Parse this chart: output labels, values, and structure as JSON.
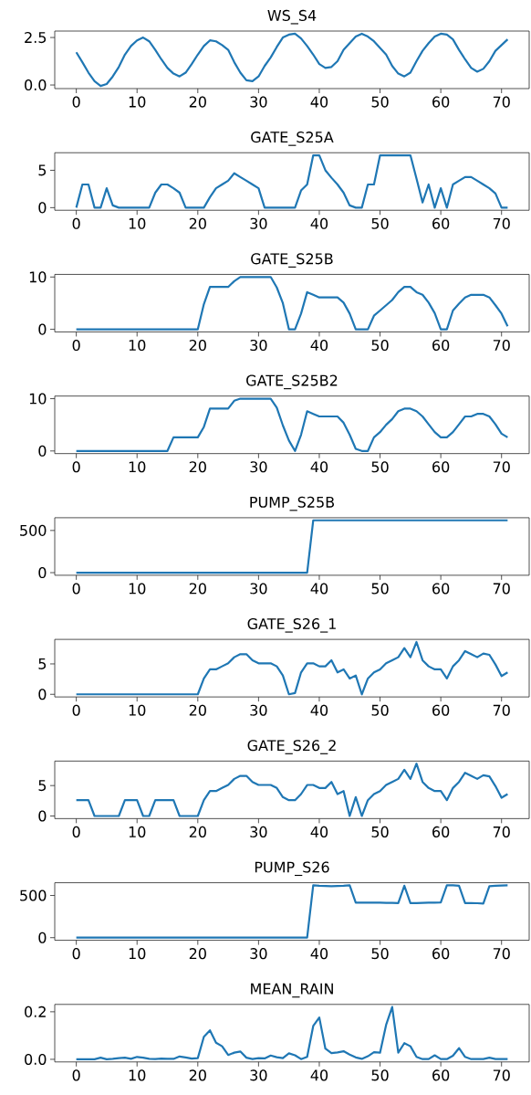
{
  "chart_data": [
    {
      "type": "line",
      "title": "WS_S4",
      "color": "#1f77b4",
      "xlim": [
        -3.55,
        74.55
      ],
      "ylim": [
        -0.19,
        2.84
      ],
      "xticks": [
        0,
        10,
        20,
        30,
        40,
        50,
        60,
        70
      ],
      "yticks": [
        {
          "value": 0,
          "label": "0.0"
        },
        2.5
      ],
      "x": [
        0,
        1,
        2,
        3,
        4,
        5,
        6,
        7,
        8,
        9,
        10,
        11,
        12,
        13,
        14,
        15,
        16,
        17,
        18,
        19,
        20,
        21,
        22,
        23,
        24,
        25,
        26,
        27,
        28,
        29,
        30,
        31,
        32,
        33,
        34,
        35,
        36,
        37,
        38,
        39,
        40,
        41,
        42,
        43,
        44,
        45,
        46,
        47,
        48,
        49,
        50,
        51,
        52,
        53,
        54,
        55,
        56,
        57,
        58,
        59,
        60,
        61,
        62,
        63,
        64,
        65,
        66,
        67,
        68,
        69,
        70,
        71
      ],
      "values": [
        1.72,
        1.2,
        0.65,
        0.2,
        -0.05,
        0.05,
        0.45,
        0.95,
        1.6,
        2.05,
        2.35,
        2.5,
        2.3,
        1.85,
        1.35,
        0.9,
        0.6,
        0.45,
        0.65,
        1.1,
        1.6,
        2.05,
        2.35,
        2.3,
        2.1,
        1.85,
        1.2,
        0.65,
        0.25,
        0.2,
        0.45,
        1.0,
        1.45,
        2.0,
        2.5,
        2.65,
        2.7,
        2.45,
        2.05,
        1.6,
        1.1,
        0.9,
        0.95,
        1.25,
        1.85,
        2.2,
        2.55,
        2.7,
        2.55,
        2.3,
        1.95,
        1.6,
        1.0,
        0.6,
        0.45,
        0.65,
        1.25,
        1.8,
        2.2,
        2.55,
        2.7,
        2.65,
        2.4,
        1.85,
        1.35,
        0.9,
        0.7,
        0.85,
        1.25,
        1.8,
        2.1,
        2.4
      ]
    },
    {
      "type": "line",
      "title": "GATE_S25A",
      "color": "#1f77b4",
      "xlim": [
        -3.55,
        74.55
      ],
      "ylim": [
        -0.35,
        7.35
      ],
      "xticks": [
        0,
        10,
        20,
        30,
        40,
        50,
        60,
        70
      ],
      "yticks": [
        0,
        5
      ],
      "x": [
        0,
        1,
        2,
        3,
        4,
        5,
        6,
        7,
        8,
        9,
        10,
        11,
        12,
        13,
        14,
        15,
        16,
        17,
        18,
        19,
        20,
        21,
        22,
        23,
        24,
        25,
        26,
        27,
        28,
        29,
        30,
        31,
        32,
        33,
        34,
        35,
        36,
        37,
        38,
        39,
        40,
        41,
        42,
        43,
        44,
        45,
        46,
        47,
        48,
        49,
        50,
        51,
        52,
        53,
        54,
        55,
        56,
        57,
        58,
        59,
        60,
        61,
        62,
        63,
        64,
        65,
        66,
        67,
        68,
        69,
        70,
        71
      ],
      "values": [
        0,
        3.1,
        3.1,
        0,
        0,
        2.6,
        0.3,
        0,
        0,
        0,
        0,
        0,
        0,
        2.0,
        3.1,
        3.1,
        2.6,
        2.0,
        0,
        0,
        0,
        0,
        1.4,
        2.6,
        3.1,
        3.6,
        4.6,
        4.1,
        3.6,
        3.1,
        2.6,
        0,
        0,
        0,
        0,
        0,
        0,
        2.3,
        3.1,
        7,
        7,
        5.0,
        4.0,
        3.1,
        2.0,
        0.3,
        0,
        0,
        3.1,
        3.1,
        7,
        7,
        7,
        7,
        7,
        7,
        3.9,
        0.7,
        3.1,
        0,
        2.6,
        0,
        3.1,
        3.6,
        4.1,
        4.1,
        3.6,
        3.1,
        2.6,
        1.9,
        0,
        0
      ]
    },
    {
      "type": "line",
      "title": "GATE_S25B",
      "color": "#1f77b4",
      "xlim": [
        -3.55,
        74.55
      ],
      "ylim": [
        -0.5,
        10.5
      ],
      "xticks": [
        0,
        10,
        20,
        30,
        40,
        50,
        60,
        70
      ],
      "yticks": [
        0,
        10
      ],
      "x": [
        0,
        1,
        2,
        3,
        4,
        5,
        6,
        7,
        8,
        9,
        10,
        11,
        12,
        13,
        14,
        15,
        16,
        17,
        18,
        19,
        20,
        21,
        22,
        23,
        24,
        25,
        26,
        27,
        28,
        29,
        30,
        31,
        32,
        33,
        34,
        35,
        36,
        37,
        38,
        39,
        40,
        41,
        42,
        43,
        44,
        45,
        46,
        47,
        48,
        49,
        50,
        51,
        52,
        53,
        54,
        55,
        56,
        57,
        58,
        59,
        60,
        61,
        62,
        63,
        64,
        65,
        66,
        67,
        68,
        69,
        70,
        71
      ],
      "values": [
        0,
        0,
        0,
        0,
        0,
        0,
        0,
        0,
        0,
        0,
        0,
        0,
        0,
        0,
        0,
        0,
        0,
        0,
        0,
        0,
        0,
        4.8,
        8.1,
        8.1,
        8.1,
        8.1,
        9.2,
        10,
        10,
        10,
        10,
        10,
        10,
        8,
        5,
        0,
        0,
        3,
        7.1,
        6.6,
        6.1,
        6.1,
        6.1,
        6.1,
        5.1,
        3.0,
        0,
        0,
        0,
        2.6,
        3.6,
        4.6,
        5.6,
        7.1,
        8.1,
        8.1,
        7.1,
        6.6,
        5.1,
        3.1,
        0,
        0,
        3.6,
        4.9,
        6.1,
        6.6,
        6.6,
        6.6,
        6.1,
        4.6,
        3.0,
        0.6
      ]
    },
    {
      "type": "line",
      "title": "GATE_S25B2",
      "color": "#1f77b4",
      "xlim": [
        -3.55,
        74.55
      ],
      "ylim": [
        -0.5,
        10.5
      ],
      "xticks": [
        0,
        10,
        20,
        30,
        40,
        50,
        60,
        70
      ],
      "yticks": [
        0,
        10
      ],
      "x": [
        0,
        1,
        2,
        3,
        4,
        5,
        6,
        7,
        8,
        9,
        10,
        11,
        12,
        13,
        14,
        15,
        16,
        17,
        18,
        19,
        20,
        21,
        22,
        23,
        24,
        25,
        26,
        27,
        28,
        29,
        30,
        31,
        32,
        33,
        34,
        35,
        36,
        37,
        38,
        39,
        40,
        41,
        42,
        43,
        44,
        45,
        46,
        47,
        48,
        49,
        50,
        51,
        52,
        53,
        54,
        55,
        56,
        57,
        58,
        59,
        60,
        61,
        62,
        63,
        64,
        65,
        66,
        67,
        68,
        69,
        70,
        71
      ],
      "values": [
        0,
        0,
        0,
        0,
        0,
        0,
        0,
        0,
        0,
        0,
        0,
        0,
        0,
        0,
        0,
        0,
        2.6,
        2.6,
        2.6,
        2.6,
        2.6,
        4.6,
        8.1,
        8.1,
        8.1,
        8.1,
        9.6,
        10,
        10,
        10,
        10,
        10,
        10,
        8.3,
        4.9,
        2.0,
        0,
        3.1,
        7.6,
        7.1,
        6.6,
        6.6,
        6.6,
        6.6,
        5.4,
        3.1,
        0.4,
        0,
        0,
        2.6,
        3.6,
        5.0,
        6.1,
        7.6,
        8.1,
        8.1,
        7.6,
        6.6,
        5.1,
        3.6,
        2.6,
        2.6,
        3.6,
        5.1,
        6.6,
        6.6,
        7.1,
        7.1,
        6.6,
        5.1,
        3.3,
        2.6
      ]
    },
    {
      "type": "line",
      "title": "PUMP_S25B",
      "color": "#1f77b4",
      "xlim": [
        -3.55,
        74.55
      ],
      "ylim": [
        -31,
        651
      ],
      "xticks": [
        0,
        10,
        20,
        30,
        40,
        50,
        60,
        70
      ],
      "yticks": [
        0,
        500
      ],
      "x": [
        0,
        1,
        2,
        3,
        4,
        5,
        6,
        7,
        8,
        9,
        10,
        11,
        12,
        13,
        14,
        15,
        16,
        17,
        18,
        19,
        20,
        21,
        22,
        23,
        24,
        25,
        26,
        27,
        28,
        29,
        30,
        31,
        32,
        33,
        34,
        35,
        36,
        37,
        38,
        39,
        40,
        41,
        42,
        43,
        44,
        45,
        46,
        47,
        48,
        49,
        50,
        51,
        52,
        53,
        54,
        55,
        56,
        57,
        58,
        59,
        60,
        61,
        62,
        63,
        64,
        65,
        66,
        67,
        68,
        69,
        70,
        71
      ],
      "values": [
        0,
        0,
        0,
        0,
        0,
        0,
        0,
        0,
        0,
        0,
        0,
        0,
        0,
        0,
        0,
        0,
        0,
        0,
        0,
        0,
        0,
        0,
        0,
        0,
        0,
        0,
        0,
        0,
        0,
        0,
        0,
        0,
        0,
        0,
        0,
        0,
        0,
        0,
        0,
        620,
        620,
        620,
        620,
        620,
        620,
        620,
        620,
        620,
        620,
        620,
        620,
        620,
        620,
        620,
        620,
        620,
        620,
        620,
        620,
        620,
        620,
        620,
        620,
        620,
        620,
        620,
        620,
        620,
        620,
        620,
        620,
        620
      ]
    },
    {
      "type": "line",
      "title": "GATE_S26_1",
      "color": "#1f77b4",
      "xlim": [
        -3.55,
        74.55
      ],
      "ylim": [
        -0.43,
        9.03
      ],
      "xticks": [
        0,
        10,
        20,
        30,
        40,
        50,
        60,
        70
      ],
      "yticks": [
        0,
        5
      ],
      "x": [
        0,
        1,
        2,
        3,
        4,
        5,
        6,
        7,
        8,
        9,
        10,
        11,
        12,
        13,
        14,
        15,
        16,
        17,
        18,
        19,
        20,
        21,
        22,
        23,
        24,
        25,
        26,
        27,
        28,
        29,
        30,
        31,
        32,
        33,
        34,
        35,
        36,
        37,
        38,
        39,
        40,
        41,
        42,
        43,
        44,
        45,
        46,
        47,
        48,
        49,
        50,
        51,
        52,
        53,
        54,
        55,
        56,
        57,
        58,
        59,
        60,
        61,
        62,
        63,
        64,
        65,
        66,
        67,
        68,
        69,
        70,
        71
      ],
      "values": [
        0,
        0,
        0,
        0,
        0,
        0,
        0,
        0,
        0,
        0,
        0,
        0,
        0,
        0,
        0,
        0,
        0,
        0,
        0,
        0,
        0,
        2.6,
        4.1,
        4.1,
        4.6,
        5.1,
        6.1,
        6.6,
        6.6,
        5.6,
        5.1,
        5.1,
        5.1,
        4.6,
        3.1,
        0,
        0.2,
        3.6,
        5.1,
        5.1,
        4.6,
        4.6,
        5.6,
        3.6,
        4.1,
        2.6,
        3.1,
        0,
        2.6,
        3.6,
        4.1,
        5.1,
        5.6,
        6.1,
        7.6,
        6.1,
        8.6,
        5.6,
        4.6,
        4.1,
        4.1,
        2.6,
        4.6,
        5.6,
        7.1,
        6.6,
        6.1,
        6.7,
        6.5,
        4.9,
        3.0,
        3.6
      ]
    },
    {
      "type": "line",
      "title": "GATE_S26_2",
      "color": "#1f77b4",
      "xlim": [
        -3.55,
        74.55
      ],
      "ylim": [
        -0.43,
        9.03
      ],
      "xticks": [
        0,
        10,
        20,
        30,
        40,
        50,
        60,
        70
      ],
      "yticks": [
        0,
        5
      ],
      "x": [
        0,
        1,
        2,
        3,
        4,
        5,
        6,
        7,
        8,
        9,
        10,
        11,
        12,
        13,
        14,
        15,
        16,
        17,
        18,
        19,
        20,
        21,
        22,
        23,
        24,
        25,
        26,
        27,
        28,
        29,
        30,
        31,
        32,
        33,
        34,
        35,
        36,
        37,
        38,
        39,
        40,
        41,
        42,
        43,
        44,
        45,
        46,
        47,
        48,
        49,
        50,
        51,
        52,
        53,
        54,
        55,
        56,
        57,
        58,
        59,
        60,
        61,
        62,
        63,
        64,
        65,
        66,
        67,
        68,
        69,
        70,
        71
      ],
      "values": [
        2.6,
        2.6,
        2.6,
        0,
        0,
        0,
        0,
        0,
        2.6,
        2.6,
        2.6,
        0,
        0,
        2.6,
        2.6,
        2.6,
        2.6,
        0,
        0,
        0,
        0,
        2.6,
        4.1,
        4.1,
        4.6,
        5.1,
        6.1,
        6.6,
        6.6,
        5.6,
        5.1,
        5.1,
        5.1,
        4.6,
        3.1,
        2.6,
        2.6,
        3.6,
        5.1,
        5.1,
        4.6,
        4.6,
        5.6,
        3.6,
        4.1,
        0,
        3.1,
        0,
        2.6,
        3.6,
        4.1,
        5.1,
        5.6,
        6.1,
        7.6,
        6.1,
        8.6,
        5.6,
        4.6,
        4.1,
        4.1,
        2.6,
        4.6,
        5.6,
        7.1,
        6.6,
        6.1,
        6.7,
        6.5,
        4.9,
        3.0,
        3.6
      ]
    },
    {
      "type": "line",
      "title": "PUMP_S26",
      "color": "#1f77b4",
      "xlim": [
        -3.55,
        74.55
      ],
      "ylim": [
        -31,
        651
      ],
      "xticks": [
        0,
        10,
        20,
        30,
        40,
        50,
        60,
        70
      ],
      "yticks": [
        0,
        500
      ],
      "x": [
        0,
        1,
        2,
        3,
        4,
        5,
        6,
        7,
        8,
        9,
        10,
        11,
        12,
        13,
        14,
        15,
        16,
        17,
        18,
        19,
        20,
        21,
        22,
        23,
        24,
        25,
        26,
        27,
        28,
        29,
        30,
        31,
        32,
        33,
        34,
        35,
        36,
        37,
        38,
        39,
        40,
        41,
        42,
        43,
        44,
        45,
        46,
        47,
        48,
        49,
        50,
        51,
        52,
        53,
        54,
        55,
        56,
        57,
        58,
        59,
        60,
        61,
        62,
        63,
        64,
        65,
        66,
        67,
        68,
        69,
        70,
        71
      ],
      "values": [
        0,
        0,
        0,
        0,
        0,
        0,
        0,
        0,
        0,
        0,
        0,
        0,
        0,
        0,
        0,
        0,
        0,
        0,
        0,
        0,
        0,
        0,
        0,
        0,
        0,
        0,
        0,
        0,
        0,
        0,
        0,
        0,
        0,
        0,
        0,
        0,
        0,
        0,
        0,
        620,
        615,
        612,
        610,
        612,
        615,
        620,
        415,
        415,
        415,
        415,
        415,
        413,
        412,
        410,
        615,
        410,
        410,
        413,
        415,
        415,
        417,
        620,
        620,
        615,
        410,
        410,
        408,
        405,
        610,
        615,
        618,
        620
      ]
    },
    {
      "type": "line",
      "title": "MEAN_RAIN",
      "color": "#1f77b4",
      "xlim": [
        -3.55,
        74.55
      ],
      "ylim": [
        -0.011,
        0.231
      ],
      "xticks": [
        0,
        10,
        20,
        30,
        40,
        50,
        60,
        70
      ],
      "yticks": [
        {
          "value": 0,
          "label": "0.0"
        },
        0.2
      ],
      "x": [
        0,
        1,
        2,
        3,
        4,
        5,
        6,
        7,
        8,
        9,
        10,
        11,
        12,
        13,
        14,
        15,
        16,
        17,
        18,
        19,
        20,
        21,
        22,
        23,
        24,
        25,
        26,
        27,
        28,
        29,
        30,
        31,
        32,
        33,
        34,
        35,
        36,
        37,
        38,
        39,
        40,
        41,
        42,
        43,
        44,
        45,
        46,
        47,
        48,
        49,
        50,
        51,
        52,
        53,
        54,
        55,
        56,
        57,
        58,
        59,
        60,
        61,
        62,
        63,
        64,
        65,
        66,
        67,
        68,
        69,
        70,
        71
      ],
      "values": [
        0,
        0,
        0,
        0,
        0.007,
        0,
        0.002,
        0.005,
        0.007,
        0.002,
        0.01,
        0.007,
        0.002,
        0.001,
        0.003,
        0.002,
        0.002,
        0.012,
        0.008,
        0.003,
        0.005,
        0.095,
        0.122,
        0.07,
        0.055,
        0.018,
        0.028,
        0.033,
        0.007,
        0.001,
        0.005,
        0.004,
        0.016,
        0.009,
        0.005,
        0.025,
        0.017,
        0.001,
        0.01,
        0.14,
        0.176,
        0.045,
        0.026,
        0.029,
        0.034,
        0.02,
        0.008,
        0.002,
        0.013,
        0.03,
        0.028,
        0.145,
        0.22,
        0.028,
        0.068,
        0.055,
        0.01,
        0.001,
        0.001,
        0.017,
        0.001,
        0.001,
        0.015,
        0.047,
        0.01,
        0.001,
        0.001,
        0.001,
        0.007,
        0.001,
        0.001,
        0.001
      ]
    }
  ]
}
